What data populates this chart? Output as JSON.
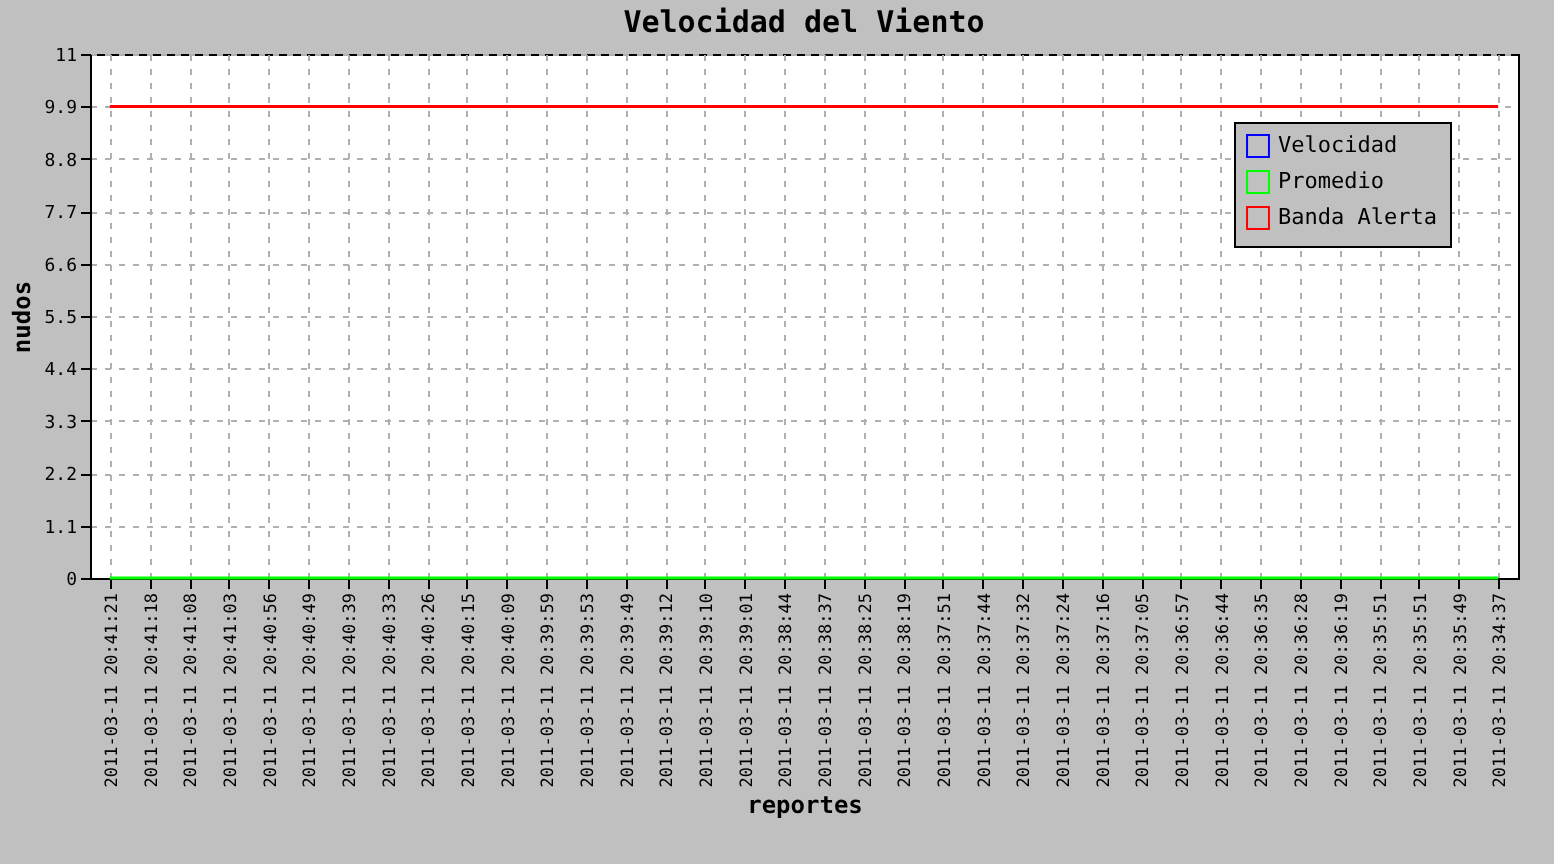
{
  "chart_data": {
    "type": "line",
    "title": "Velocidad del Viento",
    "xlabel": "reportes",
    "ylabel": "nudos",
    "categories": [
      "2011-03-11 20:41:21",
      "2011-03-11 20:41:18",
      "2011-03-11 20:41:08",
      "2011-03-11 20:41:03",
      "2011-03-11 20:40:56",
      "2011-03-11 20:40:49",
      "2011-03-11 20:40:39",
      "2011-03-11 20:40:33",
      "2011-03-11 20:40:26",
      "2011-03-11 20:40:15",
      "2011-03-11 20:40:09",
      "2011-03-11 20:39:59",
      "2011-03-11 20:39:53",
      "2011-03-11 20:39:49",
      "2011-03-11 20:39:12",
      "2011-03-11 20:39:10",
      "2011-03-11 20:39:01",
      "2011-03-11 20:38:44",
      "2011-03-11 20:38:37",
      "2011-03-11 20:38:25",
      "2011-03-11 20:38:19",
      "2011-03-11 20:37:51",
      "2011-03-11 20:37:44",
      "2011-03-11 20:37:32",
      "2011-03-11 20:37:24",
      "2011-03-11 20:37:16",
      "2011-03-11 20:37:05",
      "2011-03-11 20:36:57",
      "2011-03-11 20:36:44",
      "2011-03-11 20:36:35",
      "2011-03-11 20:36:28",
      "2011-03-11 20:36:19",
      "2011-03-11 20:35:51",
      "2011-03-11 20:35:51",
      "2011-03-11 20:35:49",
      "2011-03-11 20:34:37"
    ],
    "series": [
      {
        "name": "Velocidad",
        "color": "#0000ff",
        "values": [
          null,
          null,
          null,
          null,
          null,
          null,
          null,
          null,
          null,
          null,
          null,
          null,
          null,
          null,
          null,
          null,
          null,
          null,
          null,
          null,
          null,
          null,
          null,
          null,
          null,
          null,
          null,
          null,
          null,
          null,
          null,
          null,
          null,
          null,
          null,
          null
        ]
      },
      {
        "name": "Promedio",
        "color": "#00ff00",
        "values": [
          0,
          0,
          0,
          0,
          0,
          0,
          0,
          0,
          0,
          0,
          0,
          0,
          0,
          0,
          0,
          0,
          0,
          0,
          0,
          0,
          0,
          0,
          0,
          0,
          0,
          0,
          0,
          0,
          0,
          0,
          0,
          0,
          0,
          0,
          0,
          0
        ]
      },
      {
        "name": "Banda Alerta",
        "color": "#ff0000",
        "values": [
          9.9,
          9.9,
          9.9,
          9.9,
          9.9,
          9.9,
          9.9,
          9.9,
          9.9,
          9.9,
          9.9,
          9.9,
          9.9,
          9.9,
          9.9,
          9.9,
          9.9,
          9.9,
          9.9,
          9.9,
          9.9,
          9.9,
          9.9,
          9.9,
          9.9,
          9.9,
          9.9,
          9.9,
          9.9,
          9.9,
          9.9,
          9.9,
          9.9,
          9.9,
          9.9,
          9.9
        ]
      }
    ],
    "ylim": [
      0,
      11
    ],
    "yticks": [
      0,
      1.1,
      2.2,
      3.3,
      4.4,
      5.5,
      6.6,
      7.7,
      8.8,
      9.9,
      11
    ],
    "grid": true,
    "legend": "top right",
    "line_style": "solid",
    "marker": "none"
  }
}
